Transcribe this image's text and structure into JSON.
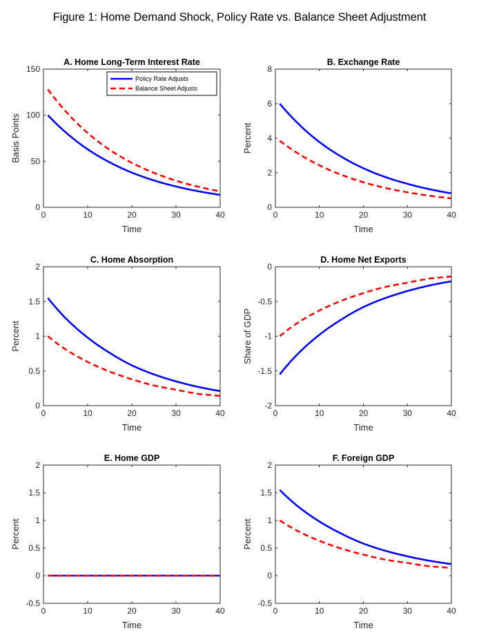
{
  "figure_title": "Figure 1: Home Demand Shock, Policy Rate vs. Balance Sheet Adjustment",
  "colors": {
    "policy": "#0000ff",
    "balance": "#ff0000",
    "axis": "#262626"
  },
  "chart_data": [
    {
      "id": "A",
      "type": "line",
      "title": "A. Home Long-Term Interest Rate",
      "xlabel": "Time",
      "ylabel": "Basis Points",
      "xlim": [
        0,
        40
      ],
      "ylim": [
        0,
        150
      ],
      "xticks": [
        0,
        10,
        20,
        30,
        40
      ],
      "yticks": [
        0,
        50,
        100,
        150
      ],
      "ytick_labels": [
        "0",
        "50",
        "100",
        "150"
      ],
      "grid": false,
      "legend": {
        "placement": "top-right",
        "entries": [
          "Policy Rate Adjusts",
          "Balance Sheet Adjusts"
        ]
      },
      "x": [
        1,
        5,
        10,
        15,
        20,
        25,
        30,
        35,
        40
      ],
      "series": [
        {
          "name": "Policy Rate Adjusts",
          "style": "solid",
          "values": [
            100,
            81.5,
            63.0,
            48.8,
            37.7,
            29.2,
            22.6,
            17.5,
            13.5
          ]
        },
        {
          "name": "Balance Sheet Adjusts",
          "style": "dashed",
          "values": [
            128,
            104.3,
            80.7,
            62.4,
            48.3,
            37.4,
            28.9,
            22.4,
            17.3
          ]
        }
      ]
    },
    {
      "id": "B",
      "type": "line",
      "title": "B. Exchange Rate",
      "xlabel": "Time",
      "ylabel": "Percent",
      "xlim": [
        0,
        40
      ],
      "ylim": [
        0,
        8
      ],
      "xticks": [
        0,
        10,
        20,
        30,
        40
      ],
      "yticks": [
        0,
        2,
        4,
        6,
        8
      ],
      "ytick_labels": [
        "0",
        "2",
        "4",
        "6",
        "8"
      ],
      "grid": false,
      "x": [
        1,
        5,
        10,
        15,
        20,
        25,
        30,
        35,
        40
      ],
      "series": [
        {
          "name": "Policy Rate Adjusts",
          "style": "solid",
          "values": [
            6.0,
            4.89,
            3.78,
            2.93,
            2.26,
            1.75,
            1.36,
            1.05,
            0.81
          ]
        },
        {
          "name": "Balance Sheet Adjusts",
          "style": "dashed",
          "values": [
            3.85,
            3.14,
            2.43,
            1.88,
            1.45,
            1.12,
            0.87,
            0.67,
            0.52
          ]
        }
      ]
    },
    {
      "id": "C",
      "type": "line",
      "title": "C. Home Absorption",
      "xlabel": "Time",
      "ylabel": "Percent",
      "xlim": [
        0,
        40
      ],
      "ylim": [
        0,
        2
      ],
      "xticks": [
        0,
        10,
        20,
        30,
        40
      ],
      "yticks": [
        0,
        0.5,
        1,
        1.5,
        2
      ],
      "ytick_labels": [
        "0",
        "0.5",
        "1",
        "1.5",
        "2"
      ],
      "grid": false,
      "x": [
        1,
        5,
        10,
        15,
        20,
        25,
        30,
        35,
        40
      ],
      "series": [
        {
          "name": "Policy Rate Adjusts",
          "style": "solid",
          "values": [
            1.55,
            1.26,
            0.98,
            0.76,
            0.58,
            0.45,
            0.35,
            0.27,
            0.21
          ]
        },
        {
          "name": "Balance Sheet Adjusts",
          "style": "dashed",
          "values": [
            1.0,
            0.81,
            0.63,
            0.49,
            0.38,
            0.29,
            0.23,
            0.17,
            0.14
          ]
        }
      ]
    },
    {
      "id": "D",
      "type": "line",
      "title": "D. Home Net Exports",
      "xlabel": "Time",
      "ylabel": "Share of GDP",
      "xlim": [
        0,
        40
      ],
      "ylim": [
        -2,
        0
      ],
      "xticks": [
        0,
        10,
        20,
        30,
        40
      ],
      "yticks": [
        -2,
        -1.5,
        -1,
        -0.5,
        0
      ],
      "ytick_labels": [
        "-2",
        "-1.5",
        "-1",
        "-0.5",
        "0"
      ],
      "grid": false,
      "x": [
        1,
        5,
        10,
        15,
        20,
        25,
        30,
        35,
        40
      ],
      "series": [
        {
          "name": "Policy Rate Adjusts",
          "style": "solid",
          "values": [
            -1.55,
            -1.26,
            -0.98,
            -0.76,
            -0.58,
            -0.45,
            -0.35,
            -0.27,
            -0.21
          ]
        },
        {
          "name": "Balance Sheet Adjusts",
          "style": "dashed",
          "values": [
            -1.0,
            -0.81,
            -0.63,
            -0.49,
            -0.38,
            -0.29,
            -0.23,
            -0.17,
            -0.14
          ]
        }
      ]
    },
    {
      "id": "E",
      "type": "line",
      "title": "E. Home GDP",
      "xlabel": "Time",
      "ylabel": "Percent",
      "xlim": [
        0,
        40
      ],
      "ylim": [
        -0.5,
        2
      ],
      "xticks": [
        0,
        10,
        20,
        30,
        40
      ],
      "yticks": [
        -0.5,
        0,
        0.5,
        1,
        1.5,
        2
      ],
      "ytick_labels": [
        "-0.5",
        "0",
        "0.5",
        "1",
        "1.5",
        "2"
      ],
      "grid": false,
      "x": [
        1,
        5,
        10,
        15,
        20,
        25,
        30,
        35,
        40
      ],
      "series": [
        {
          "name": "Policy Rate Adjusts",
          "style": "solid",
          "values": [
            0,
            0,
            0,
            0,
            0,
            0,
            0,
            0,
            0
          ]
        },
        {
          "name": "Balance Sheet Adjusts",
          "style": "dashed",
          "values": [
            0,
            0,
            0,
            0,
            0,
            0,
            0,
            0,
            0
          ]
        }
      ]
    },
    {
      "id": "F",
      "type": "line",
      "title": "F. Foreign GDP",
      "xlabel": "Time",
      "ylabel": "Percent",
      "xlim": [
        0,
        40
      ],
      "ylim": [
        -0.5,
        2
      ],
      "xticks": [
        0,
        10,
        20,
        30,
        40
      ],
      "yticks": [
        -0.5,
        0,
        0.5,
        1,
        1.5,
        2
      ],
      "ytick_labels": [
        "-0.5",
        "0",
        "0.5",
        "1",
        "1.5",
        "2"
      ],
      "grid": false,
      "x": [
        1,
        5,
        10,
        15,
        20,
        25,
        30,
        35,
        40
      ],
      "series": [
        {
          "name": "Policy Rate Adjusts",
          "style": "solid",
          "values": [
            1.55,
            1.26,
            0.98,
            0.76,
            0.58,
            0.45,
            0.35,
            0.27,
            0.21
          ]
        },
        {
          "name": "Balance Sheet Adjusts",
          "style": "dashed",
          "values": [
            1.0,
            0.81,
            0.63,
            0.49,
            0.38,
            0.29,
            0.23,
            0.17,
            0.14
          ]
        }
      ]
    }
  ]
}
